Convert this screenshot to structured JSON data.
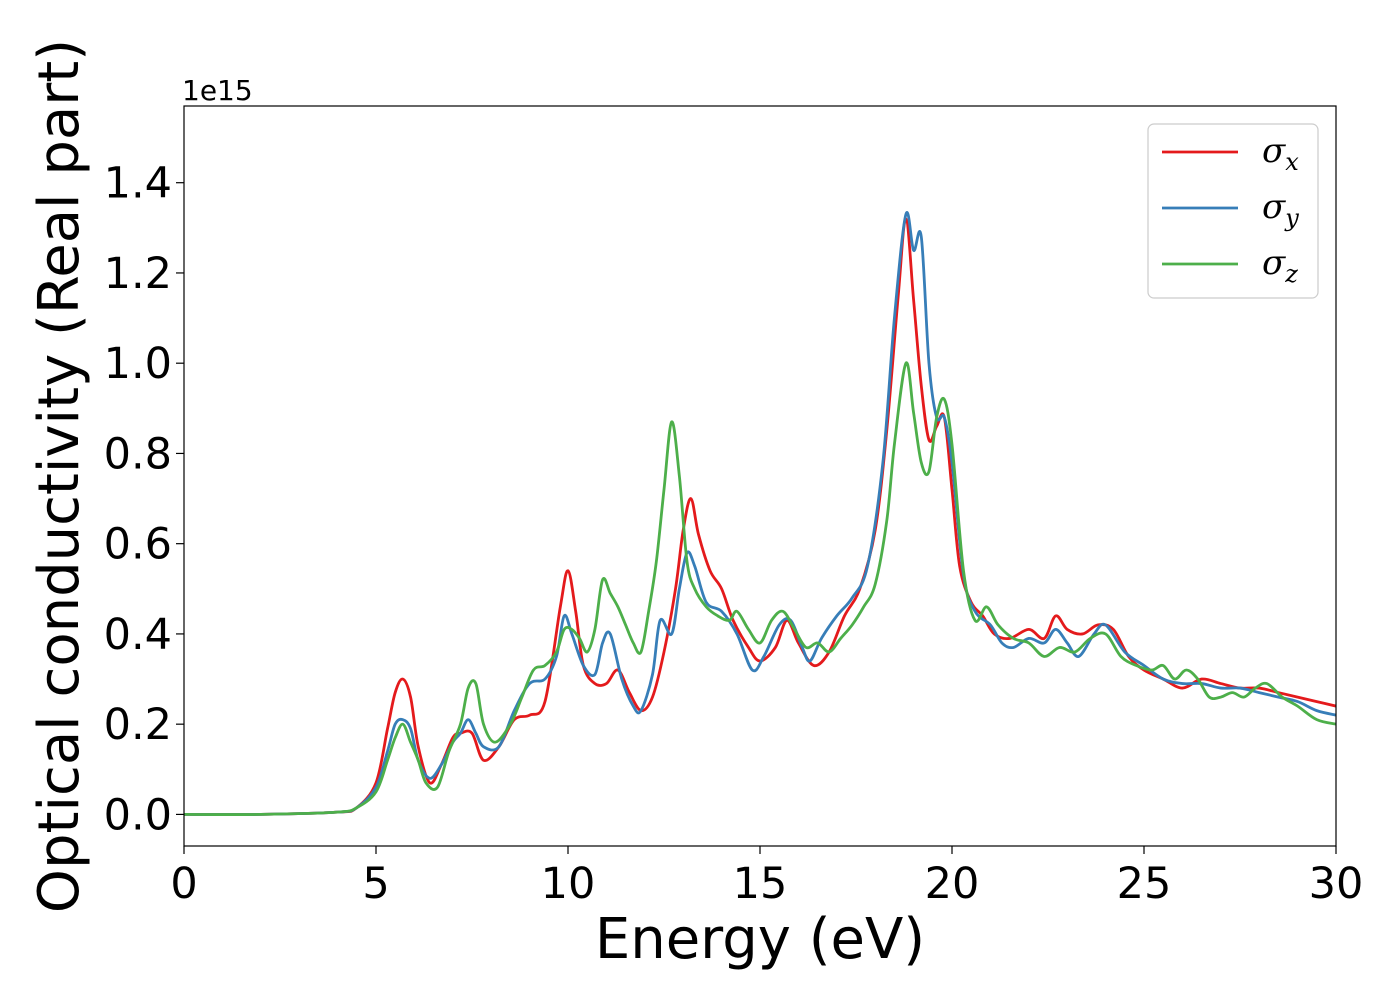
{
  "chart_data": {
    "type": "line",
    "title": "",
    "xlabel": "Energy (eV)",
    "ylabel": "Optical conductivity (Real part)",
    "y_offset_text": "1e15",
    "xlim": [
      0,
      30
    ],
    "ylim": [
      -0.07,
      1.57
    ],
    "x_ticks": [
      0,
      5,
      10,
      15,
      20,
      25,
      30
    ],
    "x_tick_labels": [
      "0",
      "5",
      "10",
      "15",
      "20",
      "25",
      "30"
    ],
    "y_ticks": [
      0.0,
      0.2,
      0.4,
      0.6,
      0.8,
      1.0,
      1.2,
      1.4
    ],
    "y_tick_labels": [
      "0.0",
      "0.2",
      "0.4",
      "0.6",
      "0.8",
      "1.0",
      "1.2",
      "1.4"
    ],
    "grid": false,
    "legend_position": "top-right",
    "series": [
      {
        "name": "σ_x",
        "legend_symbol": "σ",
        "legend_subscript": "x",
        "color": "#e41a1c",
        "x": [
          0,
          2,
          4,
          4.5,
          5.0,
          5.3,
          5.5,
          5.7,
          5.9,
          6.1,
          6.4,
          6.7,
          7.0,
          7.2,
          7.5,
          7.8,
          8.2,
          8.6,
          9.0,
          9.4,
          9.8,
          10.0,
          10.2,
          10.4,
          10.7,
          11.0,
          11.3,
          11.6,
          11.9,
          12.2,
          12.5,
          12.8,
          13.0,
          13.2,
          13.4,
          13.7,
          14.0,
          14.3,
          14.7,
          15.0,
          15.4,
          15.7,
          16.0,
          16.4,
          16.8,
          17.2,
          17.6,
          18.0,
          18.3,
          18.6,
          18.8,
          19.0,
          19.2,
          19.4,
          19.6,
          19.8,
          20.0,
          20.2,
          20.5,
          20.8,
          21.1,
          21.5,
          22.0,
          22.4,
          22.7,
          23.0,
          23.4,
          23.8,
          24.2,
          24.6,
          25.0,
          25.5,
          26.0,
          26.5,
          27.0,
          27.5,
          28.0,
          28.5,
          29.0,
          29.5,
          30.0
        ],
        "y": [
          0,
          0,
          0.005,
          0.015,
          0.07,
          0.19,
          0.27,
          0.3,
          0.26,
          0.15,
          0.07,
          0.11,
          0.17,
          0.18,
          0.18,
          0.12,
          0.15,
          0.21,
          0.22,
          0.25,
          0.46,
          0.54,
          0.45,
          0.33,
          0.29,
          0.29,
          0.32,
          0.27,
          0.23,
          0.26,
          0.36,
          0.5,
          0.63,
          0.7,
          0.62,
          0.54,
          0.5,
          0.43,
          0.37,
          0.34,
          0.37,
          0.43,
          0.38,
          0.33,
          0.36,
          0.44,
          0.5,
          0.63,
          0.85,
          1.15,
          1.32,
          1.14,
          0.95,
          0.83,
          0.86,
          0.88,
          0.72,
          0.55,
          0.47,
          0.44,
          0.4,
          0.39,
          0.41,
          0.39,
          0.44,
          0.41,
          0.4,
          0.42,
          0.41,
          0.35,
          0.32,
          0.3,
          0.28,
          0.3,
          0.29,
          0.28,
          0.28,
          0.27,
          0.26,
          0.25,
          0.24
        ]
      },
      {
        "name": "σ_y",
        "legend_symbol": "σ",
        "legend_subscript": "y",
        "color": "#377eb8",
        "x": [
          0,
          2,
          4,
          4.5,
          5.0,
          5.3,
          5.5,
          5.7,
          5.9,
          6.1,
          6.4,
          6.7,
          7.0,
          7.2,
          7.4,
          7.6,
          7.8,
          8.2,
          8.6,
          9.0,
          9.4,
          9.7,
          9.9,
          10.1,
          10.4,
          10.7,
          10.9,
          11.1,
          11.4,
          11.7,
          11.9,
          12.2,
          12.4,
          12.7,
          12.9,
          13.1,
          13.3,
          13.6,
          14.0,
          14.4,
          14.8,
          15.1,
          15.5,
          15.8,
          16.1,
          16.3,
          16.6,
          17.0,
          17.4,
          17.8,
          18.2,
          18.5,
          18.8,
          19.0,
          19.2,
          19.4,
          19.6,
          19.8,
          20.0,
          20.3,
          20.6,
          21.0,
          21.3,
          21.6,
          22.0,
          22.4,
          22.7,
          23.0,
          23.3,
          23.7,
          24.0,
          24.5,
          25.0,
          25.5,
          26.0,
          26.5,
          27.0,
          27.5,
          28.0,
          28.5,
          29.0,
          29.5,
          30.0
        ],
        "y": [
          0,
          0,
          0.005,
          0.015,
          0.06,
          0.14,
          0.2,
          0.21,
          0.19,
          0.12,
          0.08,
          0.11,
          0.16,
          0.18,
          0.21,
          0.18,
          0.15,
          0.15,
          0.23,
          0.29,
          0.3,
          0.35,
          0.44,
          0.4,
          0.33,
          0.31,
          0.38,
          0.4,
          0.3,
          0.24,
          0.23,
          0.31,
          0.43,
          0.4,
          0.5,
          0.58,
          0.55,
          0.47,
          0.45,
          0.4,
          0.32,
          0.35,
          0.42,
          0.43,
          0.37,
          0.34,
          0.39,
          0.44,
          0.48,
          0.55,
          0.78,
          1.1,
          1.33,
          1.25,
          1.28,
          1.0,
          0.88,
          0.88,
          0.78,
          0.53,
          0.45,
          0.42,
          0.38,
          0.37,
          0.39,
          0.38,
          0.41,
          0.38,
          0.35,
          0.4,
          0.42,
          0.36,
          0.33,
          0.3,
          0.29,
          0.29,
          0.28,
          0.28,
          0.27,
          0.26,
          0.25,
          0.23,
          0.22
        ]
      },
      {
        "name": "σ_z",
        "legend_symbol": "σ",
        "legend_subscript": "z",
        "color": "#4daf4a",
        "x": [
          0,
          2,
          4,
          4.5,
          5.0,
          5.3,
          5.5,
          5.7,
          5.9,
          6.1,
          6.3,
          6.6,
          6.9,
          7.2,
          7.4,
          7.6,
          7.8,
          8.1,
          8.5,
          8.8,
          9.1,
          9.4,
          9.7,
          9.9,
          10.1,
          10.3,
          10.5,
          10.7,
          10.9,
          11.1,
          11.3,
          11.5,
          11.7,
          11.9,
          12.1,
          12.3,
          12.5,
          12.7,
          12.9,
          13.1,
          13.3,
          13.6,
          13.9,
          14.2,
          14.4,
          14.7,
          15.0,
          15.3,
          15.6,
          15.9,
          16.2,
          16.5,
          16.8,
          17.1,
          17.4,
          17.7,
          18.0,
          18.3,
          18.5,
          18.8,
          19.0,
          19.2,
          19.4,
          19.6,
          19.8,
          20.0,
          20.3,
          20.6,
          20.9,
          21.2,
          21.6,
          22.0,
          22.4,
          22.8,
          23.2,
          23.6,
          24.0,
          24.4,
          24.8,
          25.2,
          25.5,
          25.8,
          26.1,
          26.4,
          26.7,
          27.0,
          27.3,
          27.6,
          27.9,
          28.2,
          28.6,
          29.0,
          29.5,
          30.0
        ],
        "y": [
          0,
          0,
          0.005,
          0.015,
          0.05,
          0.12,
          0.17,
          0.2,
          0.16,
          0.12,
          0.07,
          0.06,
          0.14,
          0.2,
          0.28,
          0.29,
          0.2,
          0.16,
          0.2,
          0.26,
          0.32,
          0.33,
          0.36,
          0.41,
          0.41,
          0.39,
          0.36,
          0.41,
          0.52,
          0.49,
          0.46,
          0.42,
          0.38,
          0.36,
          0.45,
          0.56,
          0.72,
          0.87,
          0.75,
          0.56,
          0.5,
          0.46,
          0.44,
          0.43,
          0.45,
          0.41,
          0.38,
          0.43,
          0.45,
          0.41,
          0.37,
          0.38,
          0.36,
          0.39,
          0.42,
          0.46,
          0.51,
          0.65,
          0.82,
          1.0,
          0.89,
          0.78,
          0.76,
          0.88,
          0.92,
          0.82,
          0.54,
          0.43,
          0.46,
          0.42,
          0.39,
          0.38,
          0.35,
          0.37,
          0.36,
          0.39,
          0.4,
          0.35,
          0.33,
          0.32,
          0.33,
          0.3,
          0.32,
          0.3,
          0.26,
          0.26,
          0.27,
          0.26,
          0.28,
          0.29,
          0.26,
          0.24,
          0.21,
          0.2
        ]
      }
    ]
  }
}
